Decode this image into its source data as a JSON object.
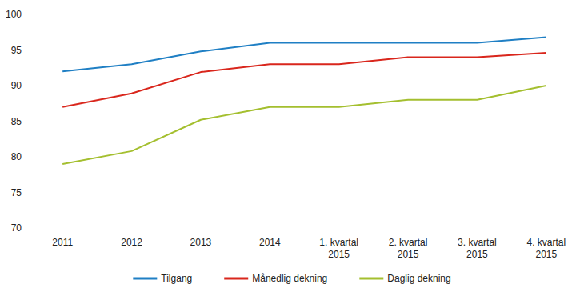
{
  "chart_data": {
    "type": "line",
    "categories": [
      "2011",
      "2012",
      "2013",
      "2014",
      "1. kvartal\n2015",
      "2. kvartal\n2015",
      "3. kvartal\n2015",
      "4. kvartal\n2015"
    ],
    "series": [
      {
        "name": "Tilgang",
        "color": "#1f7fc4",
        "values": [
          92,
          93,
          94.8,
          96,
          96,
          96,
          96,
          96.8
        ]
      },
      {
        "name": "Månedlig dekning",
        "color": "#d9261c",
        "values": [
          87,
          88.9,
          91.9,
          93,
          93,
          94,
          94,
          94.6
        ]
      },
      {
        "name": "Daglig dekning",
        "color": "#a4bf2f",
        "values": [
          79,
          80.8,
          85.2,
          87,
          87,
          88,
          88,
          90
        ]
      }
    ],
    "ylim": [
      70,
      100
    ],
    "yticks": [
      70,
      75,
      80,
      85,
      90,
      95,
      100
    ],
    "grid": false,
    "legend": "bottom"
  }
}
